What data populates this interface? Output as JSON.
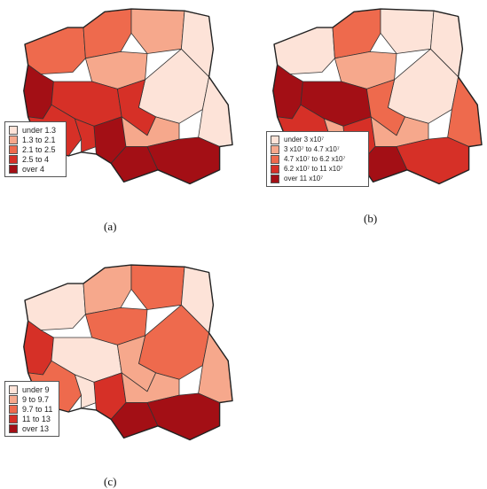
{
  "colors": {
    "class1": "#fde3d8",
    "class2": "#f6a88c",
    "class3": "#ee6a4d",
    "class4": "#d63027",
    "class5": "#a30f15",
    "border": "#333333"
  },
  "panels": [
    {
      "caption": "(a)",
      "legend": [
        "under 1.3",
        "1.3 to 2.1",
        "2.1 to 2.5",
        "2.5 to 4",
        "over 4"
      ],
      "regions": [
        3,
        3,
        2,
        1,
        5,
        2,
        4,
        1,
        4,
        1,
        4,
        4,
        5,
        2,
        5,
        5
      ]
    },
    {
      "caption": "(b)",
      "legend": [
        "under 3 x10⁷",
        "3 x10⁷ to 4.7 x10⁷",
        "4.7 x10⁷ to 6.2 x10⁷",
        "6.2 x10⁷ to 11 x10⁷",
        "over 11 x10⁷"
      ],
      "regions": [
        1,
        3,
        1,
        1,
        5,
        2,
        5,
        1,
        3,
        3,
        4,
        2,
        4,
        2,
        5,
        4
      ]
    },
    {
      "caption": "(c)",
      "legend": [
        "under 9",
        "9 to 9.7",
        "9.7 to 11",
        "11 to 13",
        "over 13"
      ],
      "regions": [
        1,
        2,
        3,
        1,
        4,
        3,
        1,
        3,
        2,
        2,
        3,
        1,
        4,
        2,
        5,
        5
      ]
    }
  ]
}
